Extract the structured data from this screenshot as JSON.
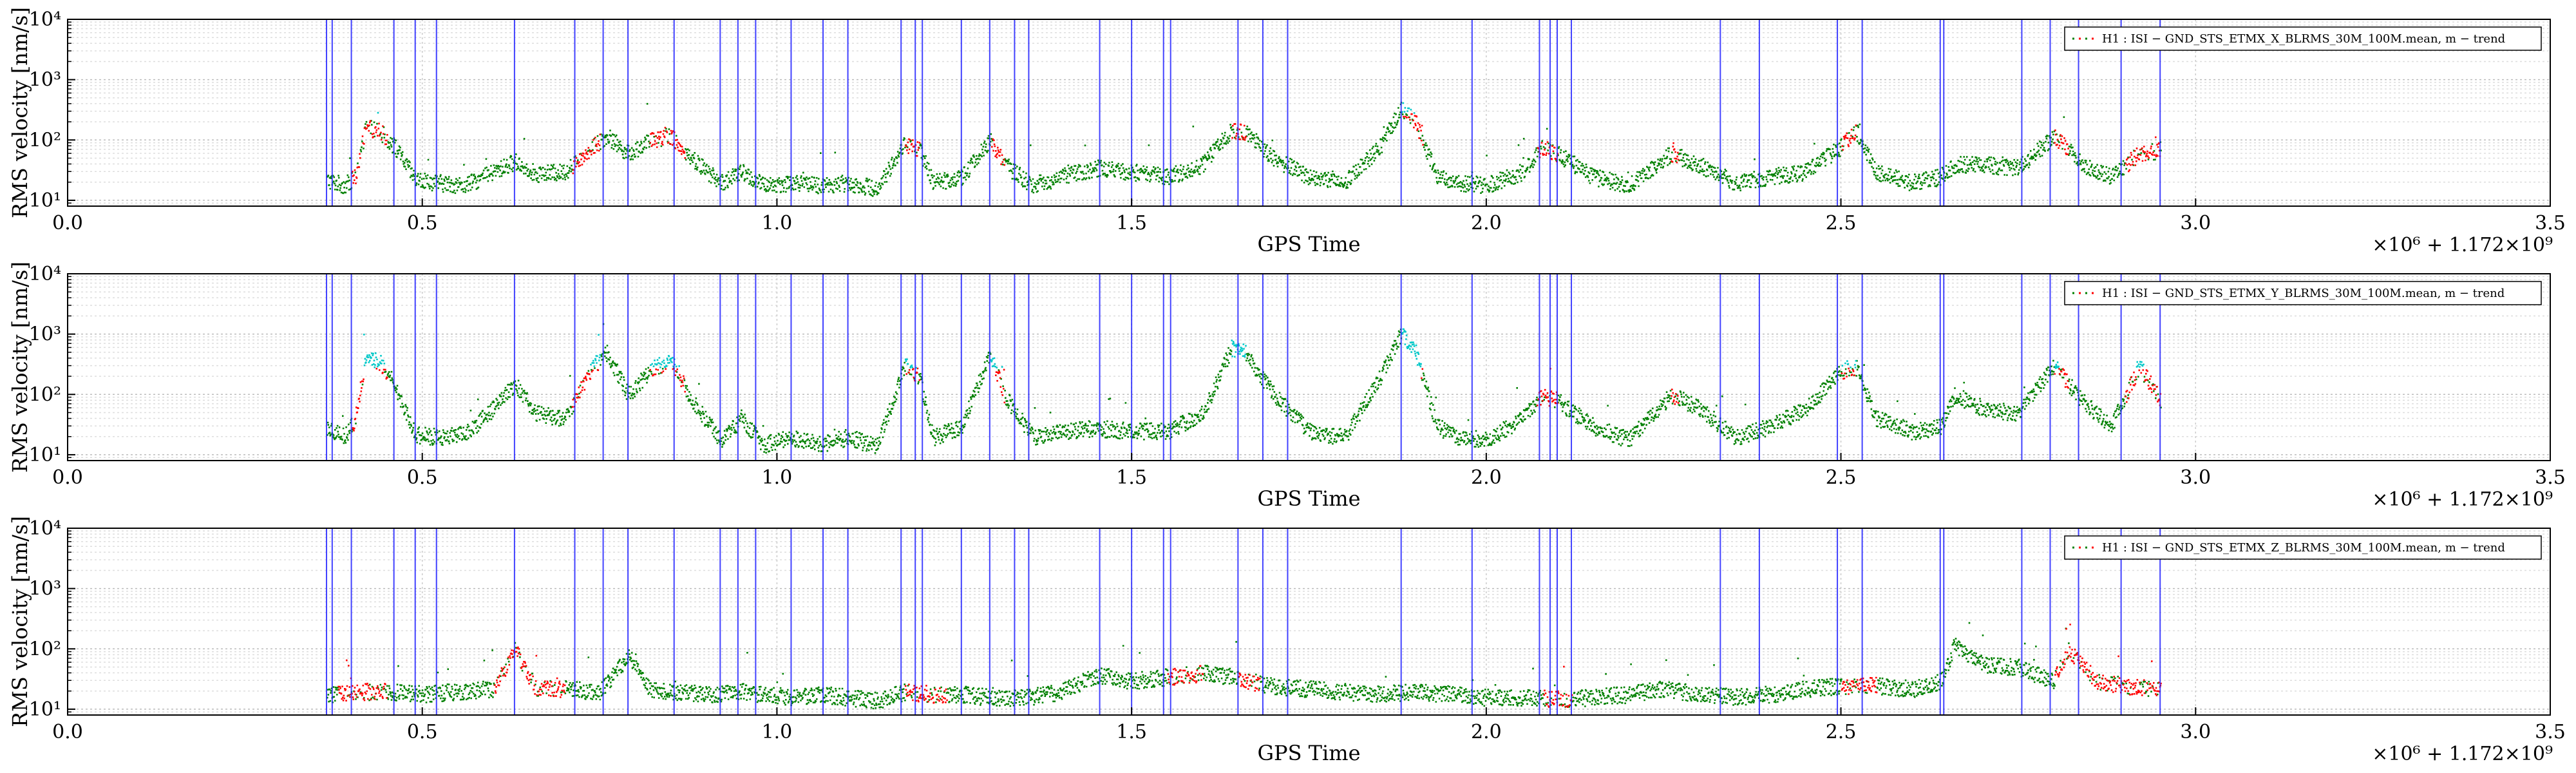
{
  "chart_data": [
    {
      "type": "scatter",
      "xlabel": "GPS Time",
      "ylabel": "RMS velocity [nm/s]",
      "x_offset_label": "×10⁶ + 1.172×10⁹",
      "xlim": [
        0.0,
        3.5
      ],
      "ylim": [
        8,
        10000
      ],
      "yscale": "log",
      "grid": true,
      "x_ticks": [
        "0.0",
        "0.5",
        "1.0",
        "1.5",
        "2.0",
        "2.5",
        "3.0",
        "3.5"
      ],
      "y_ticks": [
        "10¹",
        "10²",
        "10³",
        "10⁴"
      ],
      "legend": {
        "placement": "top-right",
        "entries": [
          "H1 : ISI − GND_STS_ETMX_X_BLRMS_30M_100M.mean, m − trend"
        ]
      },
      "series_colors": {
        "quiet": "#008000",
        "elevated": "#ff0000",
        "peak": "#00c8c8"
      },
      "trend": {
        "x": [
          0.365,
          0.39,
          0.405,
          0.42,
          0.44,
          0.46,
          0.49,
          0.52,
          0.56,
          0.6,
          0.63,
          0.66,
          0.7,
          0.74,
          0.76,
          0.79,
          0.82,
          0.85,
          0.88,
          0.92,
          0.95,
          0.98,
          1.02,
          1.06,
          1.1,
          1.14,
          1.18,
          1.2,
          1.22,
          1.26,
          1.3,
          1.32,
          1.36,
          1.4,
          1.45,
          1.5,
          1.55,
          1.6,
          1.64,
          1.66,
          1.7,
          1.75,
          1.8,
          1.85,
          1.88,
          1.9,
          1.93,
          1.96,
          2.0,
          2.05,
          2.08,
          2.1,
          2.15,
          2.2,
          2.26,
          2.3,
          2.35,
          2.4,
          2.45,
          2.5,
          2.52,
          2.55,
          2.6,
          2.64,
          2.66,
          2.7,
          2.75,
          2.8,
          2.84,
          2.88,
          2.92,
          2.95
        ],
        "y": [
          22,
          18,
          25,
          170,
          140,
          80,
          22,
          20,
          18,
          30,
          45,
          28,
          30,
          80,
          120,
          60,
          100,
          120,
          50,
          20,
          30,
          18,
          20,
          18,
          20,
          16,
          90,
          70,
          20,
          25,
          100,
          40,
          18,
          25,
          35,
          30,
          25,
          40,
          150,
          140,
          50,
          25,
          20,
          80,
          350,
          200,
          25,
          20,
          18,
          30,
          80,
          60,
          25,
          18,
          60,
          40,
          20,
          25,
          30,
          80,
          150,
          30,
          20,
          25,
          40,
          40,
          35,
          120,
          40,
          25,
          60,
          70
        ]
      },
      "elevated_intervals": [
        [
          0.4,
          0.45
        ],
        [
          0.71,
          0.75
        ],
        [
          0.82,
          0.87
        ],
        [
          1.18,
          1.2
        ],
        [
          1.3,
          1.32
        ],
        [
          1.64,
          1.66
        ],
        [
          1.88,
          1.91
        ],
        [
          2.07,
          2.1
        ],
        [
          2.26,
          2.27
        ],
        [
          2.5,
          2.52
        ],
        [
          2.8,
          2.82
        ],
        [
          2.9,
          2.95
        ]
      ],
      "vertical_markers": [
        0.365,
        0.373,
        0.4,
        0.46,
        0.49,
        0.52,
        0.63,
        0.715,
        0.755,
        0.79,
        0.855,
        0.92,
        0.945,
        0.97,
        1.02,
        1.065,
        1.1,
        1.175,
        1.195,
        1.205,
        1.26,
        1.3,
        1.335,
        1.355,
        1.455,
        1.5,
        1.545,
        1.555,
        1.65,
        1.685,
        1.72,
        1.88,
        1.98,
        2.075,
        2.09,
        2.1,
        2.12,
        2.33,
        2.385,
        2.495,
        2.53,
        2.64,
        2.645,
        2.755,
        2.795,
        2.835,
        2.895,
        2.95
      ]
    },
    {
      "type": "scatter",
      "xlabel": "GPS Time",
      "ylabel": "RMS velocity [nm/s]",
      "x_offset_label": "×10⁶ + 1.172×10⁹",
      "xlim": [
        0.0,
        3.5
      ],
      "ylim": [
        8,
        10000
      ],
      "yscale": "log",
      "grid": true,
      "x_ticks": [
        "0.0",
        "0.5",
        "1.0",
        "1.5",
        "2.0",
        "2.5",
        "3.0",
        "3.5"
      ],
      "y_ticks": [
        "10¹",
        "10²",
        "10³",
        "10⁴"
      ],
      "legend": {
        "placement": "top-right",
        "entries": [
          "H1 : ISI − GND_STS_ETMX_Y_BLRMS_30M_100M.mean, m − trend"
        ]
      },
      "series_colors": {
        "quiet": "#008000",
        "elevated": "#ff0000",
        "peak": "#00c8c8"
      },
      "trend": {
        "x": [
          0.365,
          0.39,
          0.405,
          0.42,
          0.44,
          0.46,
          0.49,
          0.52,
          0.56,
          0.6,
          0.63,
          0.66,
          0.7,
          0.74,
          0.76,
          0.79,
          0.82,
          0.85,
          0.88,
          0.92,
          0.95,
          0.98,
          1.02,
          1.06,
          1.1,
          1.14,
          1.18,
          1.2,
          1.22,
          1.26,
          1.3,
          1.32,
          1.36,
          1.4,
          1.45,
          1.5,
          1.55,
          1.6,
          1.64,
          1.66,
          1.7,
          1.75,
          1.8,
          1.85,
          1.88,
          1.9,
          1.93,
          1.96,
          2.0,
          2.05,
          2.08,
          2.1,
          2.15,
          2.2,
          2.26,
          2.3,
          2.35,
          2.4,
          2.45,
          2.5,
          2.52,
          2.55,
          2.6,
          2.64,
          2.66,
          2.7,
          2.75,
          2.8,
          2.84,
          2.88,
          2.92,
          2.95
        ],
        "y": [
          30,
          20,
          40,
          450,
          350,
          150,
          22,
          20,
          22,
          60,
          150,
          50,
          40,
          300,
          500,
          100,
          250,
          400,
          80,
          18,
          40,
          15,
          20,
          15,
          20,
          14,
          300,
          200,
          20,
          30,
          500,
          100,
          20,
          25,
          28,
          25,
          25,
          50,
          600,
          500,
          100,
          25,
          20,
          200,
          1100,
          500,
          30,
          20,
          18,
          40,
          100,
          80,
          30,
          18,
          100,
          60,
          20,
          30,
          60,
          250,
          300,
          40,
          25,
          30,
          100,
          60,
          50,
          300,
          80,
          30,
          300,
          80
        ]
      },
      "elevated_intervals": [
        [
          0.4,
          0.45
        ],
        [
          0.71,
          0.75
        ],
        [
          0.82,
          0.87
        ],
        [
          1.18,
          1.2
        ],
        [
          1.3,
          1.32
        ],
        [
          1.64,
          1.66
        ],
        [
          1.88,
          1.91
        ],
        [
          2.07,
          2.1
        ],
        [
          2.26,
          2.27
        ],
        [
          2.5,
          2.52
        ],
        [
          2.8,
          2.82
        ],
        [
          2.9,
          2.95
        ]
      ],
      "vertical_markers": [
        0.365,
        0.373,
        0.4,
        0.46,
        0.49,
        0.52,
        0.63,
        0.715,
        0.755,
        0.79,
        0.855,
        0.92,
        0.945,
        0.97,
        1.02,
        1.065,
        1.1,
        1.175,
        1.195,
        1.205,
        1.26,
        1.3,
        1.335,
        1.355,
        1.455,
        1.5,
        1.545,
        1.555,
        1.65,
        1.685,
        1.72,
        1.88,
        1.98,
        2.075,
        2.09,
        2.1,
        2.12,
        2.33,
        2.385,
        2.495,
        2.53,
        2.64,
        2.645,
        2.755,
        2.795,
        2.835,
        2.895,
        2.95
      ]
    },
    {
      "type": "scatter",
      "xlabel": "GPS Time",
      "ylabel": "RMS velocity [nm/s]",
      "x_offset_label": "×10⁶ + 1.172×10⁹",
      "xlim": [
        0.0,
        3.5
      ],
      "ylim": [
        8,
        10000
      ],
      "yscale": "log",
      "grid": true,
      "x_ticks": [
        "0.0",
        "0.5",
        "1.0",
        "1.5",
        "2.0",
        "2.5",
        "3.0",
        "3.5"
      ],
      "y_ticks": [
        "10¹",
        "10²",
        "10³",
        "10⁴"
      ],
      "legend": {
        "placement": "top-right",
        "entries": [
          "H1 : ISI − GND_STS_ETMX_Z_BLRMS_30M_100M.mean, m − trend"
        ]
      },
      "series_colors": {
        "quiet": "#008000",
        "elevated": "#ff0000",
        "peak": "#00c8c8"
      },
      "trend": {
        "x": [
          0.365,
          0.4,
          0.45,
          0.5,
          0.55,
          0.6,
          0.63,
          0.66,
          0.7,
          0.75,
          0.79,
          0.82,
          0.86,
          0.9,
          0.95,
          0.98,
          1.02,
          1.06,
          1.1,
          1.14,
          1.18,
          1.22,
          1.26,
          1.3,
          1.35,
          1.4,
          1.45,
          1.5,
          1.55,
          1.6,
          1.64,
          1.66,
          1.7,
          1.75,
          1.8,
          1.85,
          1.9,
          1.95,
          2.0,
          2.05,
          2.1,
          2.15,
          2.2,
          2.25,
          2.3,
          2.35,
          2.4,
          2.45,
          2.5,
          2.55,
          2.6,
          2.64,
          2.66,
          2.7,
          2.75,
          2.8,
          2.82,
          2.86,
          2.9,
          2.95
        ],
        "y": [
          18,
          20,
          20,
          18,
          20,
          22,
          100,
          22,
          22,
          20,
          80,
          22,
          20,
          18,
          20,
          18,
          16,
          18,
          16,
          14,
          20,
          18,
          18,
          16,
          16,
          20,
          38,
          30,
          35,
          40,
          35,
          30,
          25,
          22,
          20,
          18,
          20,
          18,
          16,
          16,
          15,
          16,
          18,
          22,
          18,
          16,
          18,
          22,
          25,
          25,
          22,
          30,
          120,
          55,
          50,
          30,
          100,
          30,
          25,
          22
        ]
      },
      "elevated_intervals": [
        [
          0.38,
          0.45
        ],
        [
          0.6,
          0.7
        ],
        [
          1.18,
          1.24
        ],
        [
          1.55,
          1.6
        ],
        [
          1.65,
          1.68
        ],
        [
          2.08,
          2.12
        ],
        [
          2.5,
          2.55
        ],
        [
          2.8,
          2.95
        ]
      ],
      "vertical_markers": [
        0.365,
        0.373,
        0.4,
        0.46,
        0.49,
        0.52,
        0.63,
        0.715,
        0.755,
        0.79,
        0.855,
        0.92,
        0.945,
        0.97,
        1.02,
        1.065,
        1.1,
        1.175,
        1.195,
        1.205,
        1.26,
        1.3,
        1.335,
        1.355,
        1.455,
        1.5,
        1.545,
        1.555,
        1.65,
        1.685,
        1.72,
        1.88,
        1.98,
        2.075,
        2.09,
        2.1,
        2.12,
        2.33,
        2.385,
        2.495,
        2.53,
        2.64,
        2.645,
        2.755,
        2.795,
        2.835,
        2.895,
        2.95
      ]
    }
  ]
}
